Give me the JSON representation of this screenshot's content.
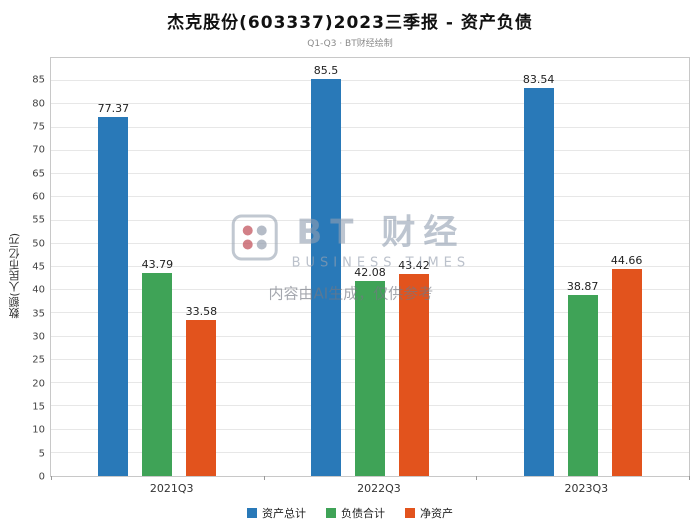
{
  "title": "杰克股份(603337)2023三季报 - 资产负债",
  "subtitle": "Q1-Q3 · BT财经绘制",
  "watermark": {
    "brand": "BT 财经",
    "brand_sub": "BUSINESS TIMES",
    "disclaimer": "内容由AI生成，仅供参考"
  },
  "chart_data": {
    "type": "bar",
    "categories": [
      "2021Q3",
      "2022Q3",
      "2023Q3"
    ],
    "series": [
      {
        "name": "资产总计",
        "color": "#2979b8",
        "values": [
          77.37,
          85.5,
          83.54
        ]
      },
      {
        "name": "负债合计",
        "color": "#3fa357",
        "values": [
          43.79,
          42.08,
          38.87
        ]
      },
      {
        "name": "净资产",
        "color": "#e2531d",
        "values": [
          33.58,
          43.42,
          44.66
        ]
      }
    ],
    "title": "杰克股份(603337)2023三季报 - 资产负债",
    "xlabel": "",
    "ylabel": "数额(人民币亿元)",
    "ylim": [
      0,
      90
    ],
    "ytick_step": 5,
    "ytick_max": 85,
    "grid": true,
    "legend_position": "bottom"
  }
}
